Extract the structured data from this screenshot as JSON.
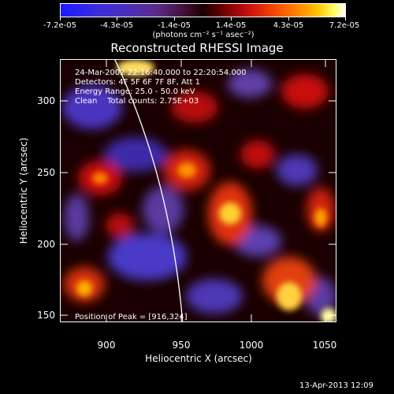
{
  "colorbar": {
    "ticks": [
      "-7.2e-05",
      "-4.3e-05",
      "-1.4e-05",
      "1.4e-05",
      "4.3e-05",
      "7.2e-05"
    ],
    "units": "(photons cm⁻² s⁻¹ asec⁻²)",
    "colors": [
      "#1a1aff",
      "#5a2a8a",
      "#000000",
      "#c81010",
      "#ff7a00",
      "#ffff60",
      "#ffffff"
    ]
  },
  "title": "Reconstructed RHESSI Image",
  "annotations": {
    "time_range": "24-Mar-2002 22:16:40.000 to 22:20:54.000",
    "detectors": "Detectors: 4F 5F 6F 7F 8F, Att 1",
    "energy": "Energy Range: 25.0 - 50.0 keV",
    "method": "Clean    Total counts: 2.75E+03",
    "peak": "Position of Peak = [916,324]"
  },
  "axes": {
    "xlabel": "Heliocentric X (arcsec)",
    "ylabel": "Heliocentric Y (arcsec)",
    "xticks": [
      "900",
      "950",
      "1000",
      "1050"
    ],
    "yticks": [
      "150",
      "200",
      "250",
      "300"
    ]
  },
  "footer": "13-Apr-2013 12:09"
}
